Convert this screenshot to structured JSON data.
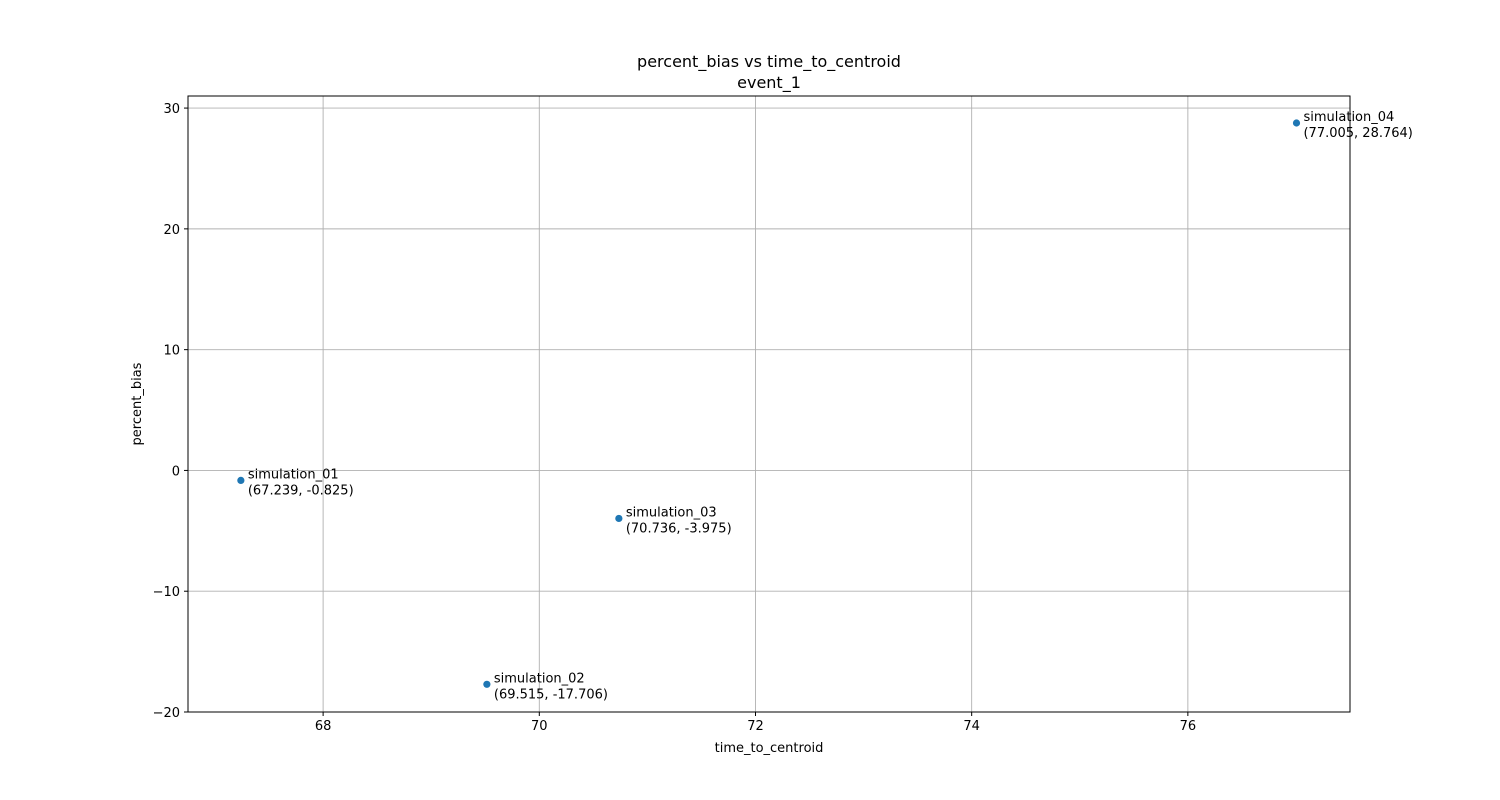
{
  "chart_data": {
    "type": "scatter",
    "title": "percent_bias vs time_to_centroid",
    "subtitle": "event_1",
    "xlabel": "time_to_centroid",
    "ylabel": "percent_bias",
    "xlim": [
      66.75,
      77.5
    ],
    "ylim": [
      -20,
      31
    ],
    "xticks": [
      68,
      70,
      72,
      74,
      76
    ],
    "yticks": [
      -20,
      -10,
      0,
      10,
      20,
      30
    ],
    "xtick_labels": [
      "68",
      "70",
      "72",
      "74",
      "76"
    ],
    "ytick_labels": [
      "−20",
      "−10",
      "0",
      "10",
      "20",
      "30"
    ],
    "grid": true,
    "marker_color": "#1f77b4",
    "points": [
      {
        "name": "simulation_01",
        "x": 67.239,
        "y": -0.825,
        "label": "(67.239, -0.825)"
      },
      {
        "name": "simulation_02",
        "x": 69.515,
        "y": -17.706,
        "label": "(69.515, -17.706)"
      },
      {
        "name": "simulation_03",
        "x": 70.736,
        "y": -3.975,
        "label": "(70.736, -3.975)"
      },
      {
        "name": "simulation_04",
        "x": 77.005,
        "y": 28.764,
        "label": "(77.005, 28.764)"
      }
    ]
  }
}
